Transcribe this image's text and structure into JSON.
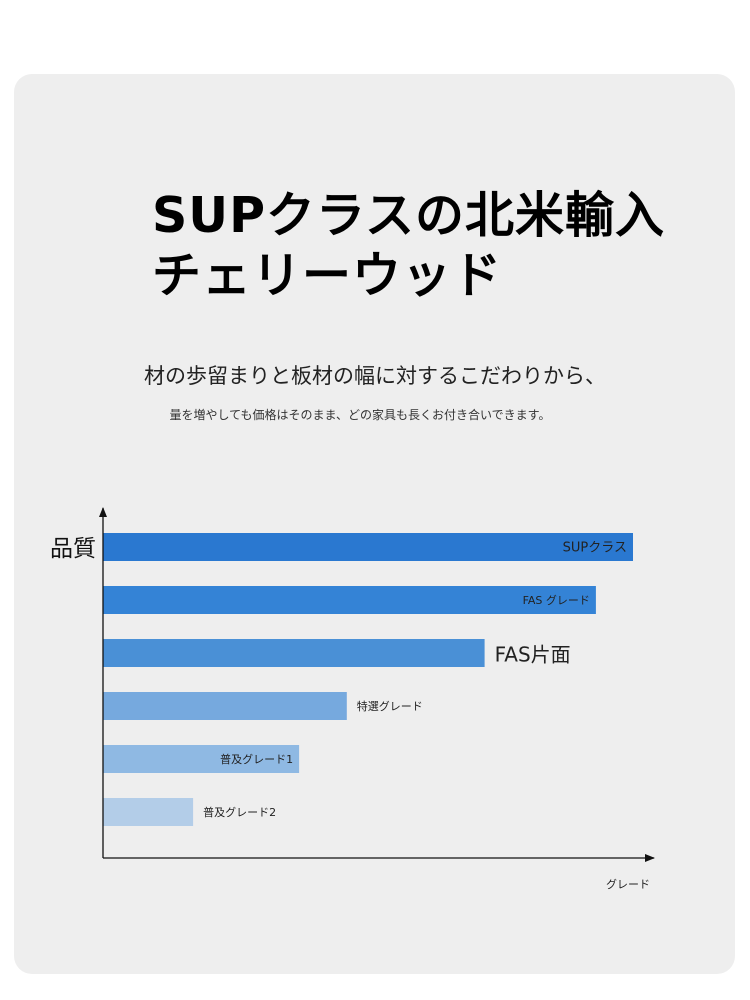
{
  "headline": {
    "line1": "SUPクラスの北米輸入",
    "line2": "チェリーウッド"
  },
  "subtitle": "材の歩留まりと板材の幅に対するこだわりから、",
  "subtitle2": "量を増やしても価格はそのまま、どの家具も長くお付き合いできます。",
  "colors": {
    "card_bg": "#eeeeee",
    "bars": [
      "#2a78d0",
      "#3483d6",
      "#4a90d6",
      "#76a9de",
      "#8fb9e3",
      "#b3cde8"
    ]
  },
  "chart_data": {
    "type": "bar",
    "orientation": "horizontal",
    "ylabel": "品質",
    "xlabel": "グレード",
    "categories": [
      "SUPクラス",
      "FAS グレード",
      "FAS片面",
      "特選グレード",
      "普及グレード1",
      "普及グレード2"
    ],
    "values": [
      100,
      93,
      72,
      46,
      37,
      17
    ],
    "xlim": [
      0,
      105
    ],
    "grid": false,
    "axis_arrows": true
  }
}
